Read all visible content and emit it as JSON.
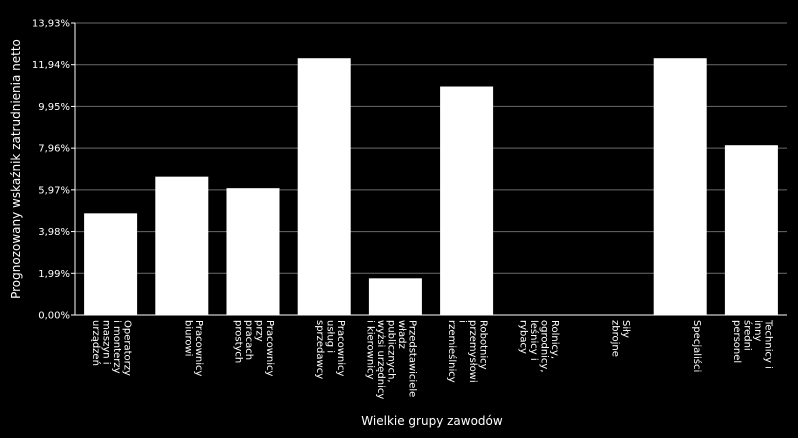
{
  "chart_data": {
    "type": "bar",
    "title": "",
    "xlabel": "Wielkie grupy zawodów",
    "ylabel": "Prognozowany wskaźnik zatrudnienia netto",
    "ylim": [
      0,
      13.93
    ],
    "yticks": [
      "0,00%",
      "1,99%",
      "3,98%",
      "5,97%",
      "7,96%",
      "9,95%",
      "11,94%",
      "13,93%"
    ],
    "grid": true,
    "categories": [
      [
        "Operatorzy",
        "i monterzy",
        "maszyn i",
        "urządzeń"
      ],
      [
        "Pracownicy",
        "biurowi"
      ],
      [
        "Pracownicy",
        "przy",
        "pracach",
        "prostych"
      ],
      [
        "Pracownicy",
        "usług i",
        "sprzedawcy"
      ],
      [
        "Przedstawiciele",
        "władz",
        "publicznych,",
        "wyżsi urzędnicy",
        "i kierownicy"
      ],
      [
        "Robotnicy",
        "przemysłowi",
        "i",
        "rzemieślnicy"
      ],
      [
        "Rolnicy,",
        "ogrodnicy,",
        "leśnicy i",
        "rybacy"
      ],
      [
        "Siły",
        "zbrojne"
      ],
      [
        "Specjaliści"
      ],
      [
        "Technicy i",
        "inny",
        "średni",
        "personel"
      ]
    ],
    "values": [
      4.85,
      6.6,
      6.05,
      12.25,
      1.75,
      10.9,
      0,
      0,
      12.25,
      8.1
    ],
    "colors": {
      "background": "#000000",
      "bar": "#ffffff",
      "grid": "#6a6a6a",
      "axis": "#ffffff"
    }
  }
}
